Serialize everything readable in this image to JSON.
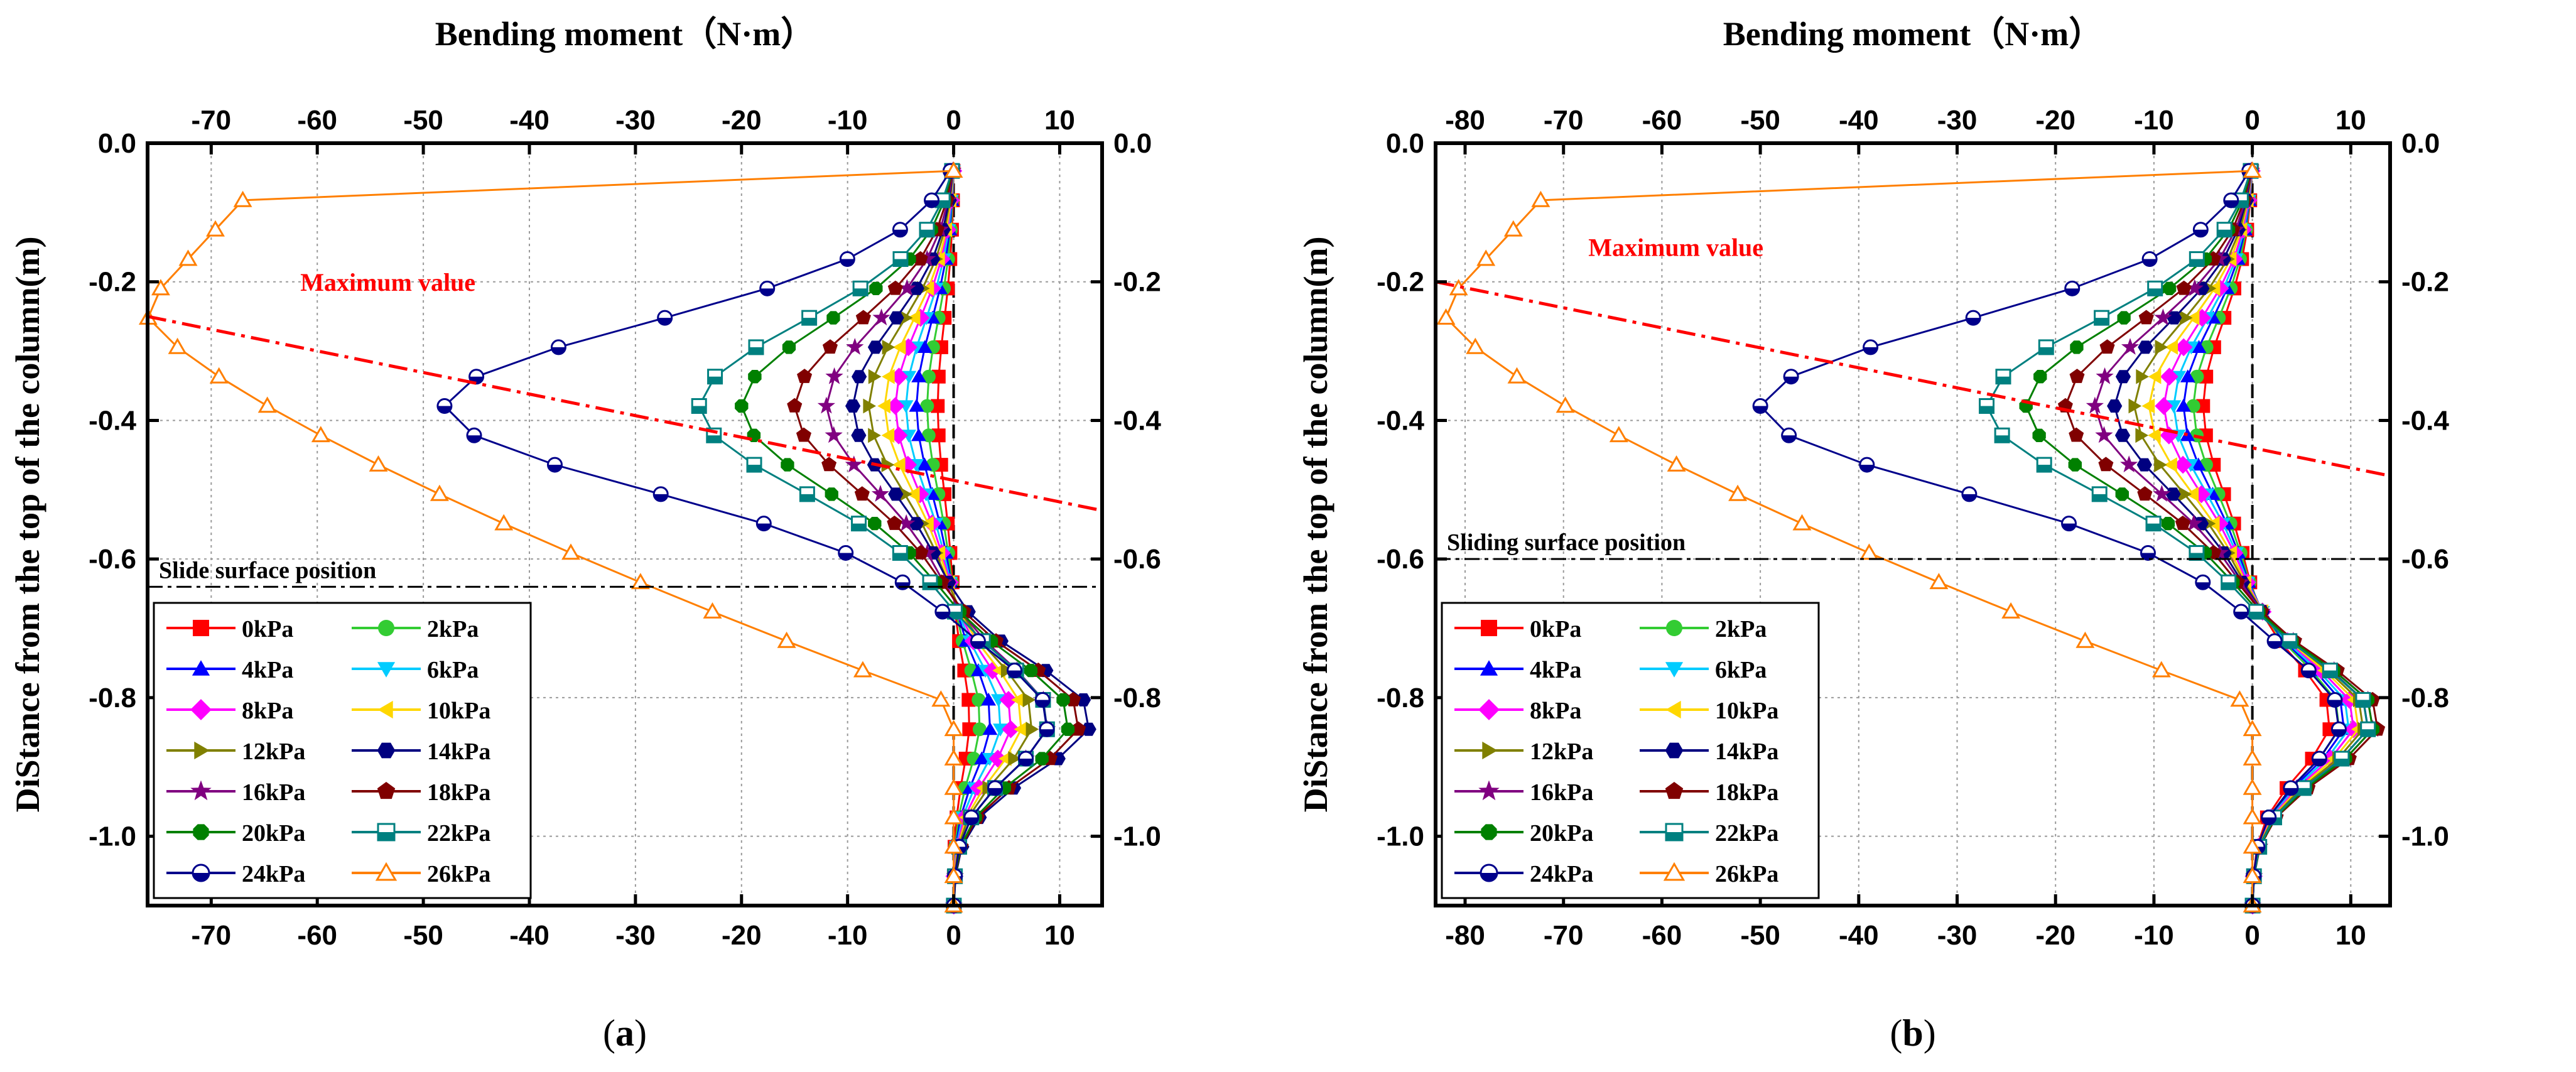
{
  "chart_data": [
    {
      "type": "line",
      "caption_prefix": "(",
      "caption_letter": "a",
      "caption_suffix": ")",
      "xlabel": "Bending moment（N·m）",
      "ylabel": "DiStance from the top of the column(m)",
      "xlim": [
        -76,
        14
      ],
      "ylim": [
        -1.1,
        0.0
      ],
      "xticks": [
        -70,
        -60,
        -50,
        -40,
        -30,
        -20,
        -10,
        0,
        10
      ],
      "yticks": [
        0.0,
        -0.2,
        -0.4,
        -0.6,
        -0.8,
        -1.0
      ],
      "grid": true,
      "annotation_max_label": "Maximum value",
      "max_line": [
        [
          -76,
          -0.25
        ],
        [
          14,
          -0.53
        ]
      ],
      "slide_label": "Slide surface position",
      "slide_depth": -0.64,
      "zero_x": 0,
      "series": [
        {
          "name": "0kPa",
          "color": "#ff0000",
          "marker": "square",
          "peak": -1.5,
          "pos": 1.5
        },
        {
          "name": "2kPa",
          "color": "#33cc33",
          "marker": "circle",
          "peak": -2.5,
          "pos": 2.5
        },
        {
          "name": "4kPa",
          "color": "#0000ff",
          "marker": "triangle-up",
          "peak": -3.5,
          "pos": 3.5
        },
        {
          "name": "6kPa",
          "color": "#00ccff",
          "marker": "triangle-down",
          "peak": -4.5,
          "pos": 4.5
        },
        {
          "name": "8kPa",
          "color": "#ff00ff",
          "marker": "diamond",
          "peak": -5.5,
          "pos": 5.5
        },
        {
          "name": "10kPa",
          "color": "#ffd700",
          "marker": "triangle-left",
          "peak": -6.5,
          "pos": 6.5
        },
        {
          "name": "12kPa",
          "color": "#808000",
          "marker": "triangle-right",
          "peak": -8,
          "pos": 7.5
        },
        {
          "name": "14kPa",
          "color": "#000080",
          "marker": "hexagon",
          "peak": -9.5,
          "pos": 13
        },
        {
          "name": "16kPa",
          "color": "#800080",
          "marker": "star",
          "peak": -12,
          "pos": 9
        },
        {
          "name": "18kPa",
          "color": "#800000",
          "marker": "pentagon",
          "peak": -15,
          "pos": 12
        },
        {
          "name": "20kPa",
          "color": "#008000",
          "marker": "octagon",
          "peak": -20,
          "pos": 11
        },
        {
          "name": "22kPa",
          "color": "#008080",
          "marker": "square-half",
          "peak": -24,
          "pos": 9
        },
        {
          "name": "24kPa",
          "color": "#00008b",
          "marker": "circle-half",
          "peak": -48,
          "pos": 9
        },
        {
          "name": "26kPa",
          "color": "#ff7f00",
          "marker": "triangle-hollow",
          "peak": -76,
          "pos": 0
        }
      ]
    },
    {
      "type": "line",
      "caption_prefix": "(",
      "caption_letter": "b",
      "caption_suffix": ")",
      "xlabel": "Bending moment（N·m）",
      "ylabel": "DiStance from the top of the column(m)",
      "xlim": [
        -83,
        14
      ],
      "ylim": [
        -1.1,
        0.0
      ],
      "xticks": [
        -80,
        -70,
        -60,
        -50,
        -40,
        -30,
        -20,
        -10,
        0,
        10
      ],
      "yticks": [
        0.0,
        -0.2,
        -0.4,
        -0.6,
        -0.8,
        -1.0
      ],
      "grid": true,
      "annotation_max_label": "Maximum value",
      "max_line": [
        [
          -83,
          -0.2
        ],
        [
          14,
          -0.48
        ]
      ],
      "slide_label": "Sliding surface position",
      "slide_depth": -0.6,
      "zero_x": 0,
      "series": [
        {
          "name": "0kPa",
          "color": "#ff0000",
          "marker": "square",
          "peak": -5,
          "pos": 8
        },
        {
          "name": "2kPa",
          "color": "#33cc33",
          "marker": "circle",
          "peak": -6,
          "pos": 9
        },
        {
          "name": "4kPa",
          "color": "#0000ff",
          "marker": "triangle-up",
          "peak": -7,
          "pos": 9.5
        },
        {
          "name": "6kPa",
          "color": "#00ccff",
          "marker": "triangle-down",
          "peak": -8,
          "pos": 10
        },
        {
          "name": "8kPa",
          "color": "#ff00ff",
          "marker": "diamond",
          "peak": -9,
          "pos": 10.5
        },
        {
          "name": "10kPa",
          "color": "#ffd700",
          "marker": "triangle-left",
          "peak": -10.5,
          "pos": 11
        },
        {
          "name": "12kPa",
          "color": "#808000",
          "marker": "triangle-right",
          "peak": -12,
          "pos": 11.5
        },
        {
          "name": "14kPa",
          "color": "#000080",
          "marker": "hexagon",
          "peak": -14,
          "pos": 12
        },
        {
          "name": "16kPa",
          "color": "#800080",
          "marker": "star",
          "peak": -16,
          "pos": 12.5
        },
        {
          "name": "18kPa",
          "color": "#800000",
          "marker": "pentagon",
          "peak": -19,
          "pos": 13
        },
        {
          "name": "20kPa",
          "color": "#008000",
          "marker": "octagon",
          "peak": -23,
          "pos": 12.5
        },
        {
          "name": "22kPa",
          "color": "#008080",
          "marker": "square-half",
          "peak": -27,
          "pos": 12
        },
        {
          "name": "24kPa",
          "color": "#00008b",
          "marker": "circle-half",
          "peak": -50,
          "pos": 9
        },
        {
          "name": "26kPa",
          "color": "#ff7f00",
          "marker": "triangle-hollow",
          "peak": -82,
          "pos": 0
        }
      ]
    }
  ]
}
